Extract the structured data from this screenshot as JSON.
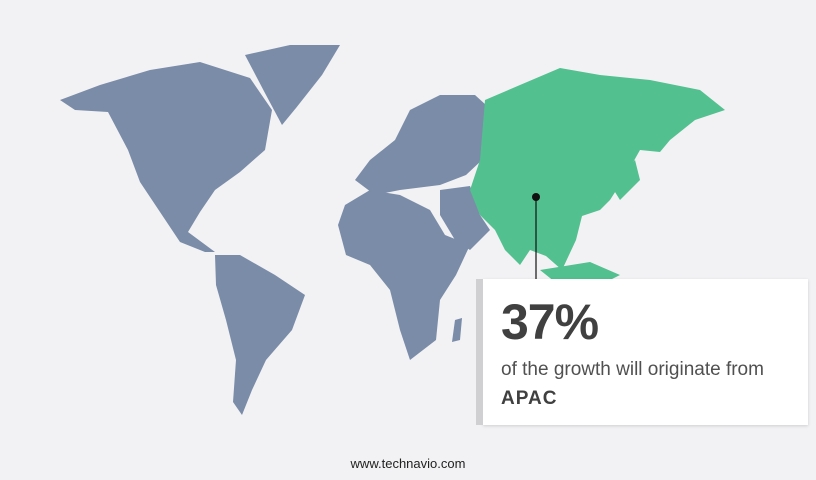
{
  "callout": {
    "value": "37%",
    "text": "of the growth will originate from",
    "region": "APAC"
  },
  "footer": {
    "website": "www.technavio.com"
  },
  "colors": {
    "background": "#f2f2f4",
    "land": "#7a8ca8",
    "highlight": "#52c08f"
  },
  "map": {
    "highlighted_region": "APAC"
  }
}
